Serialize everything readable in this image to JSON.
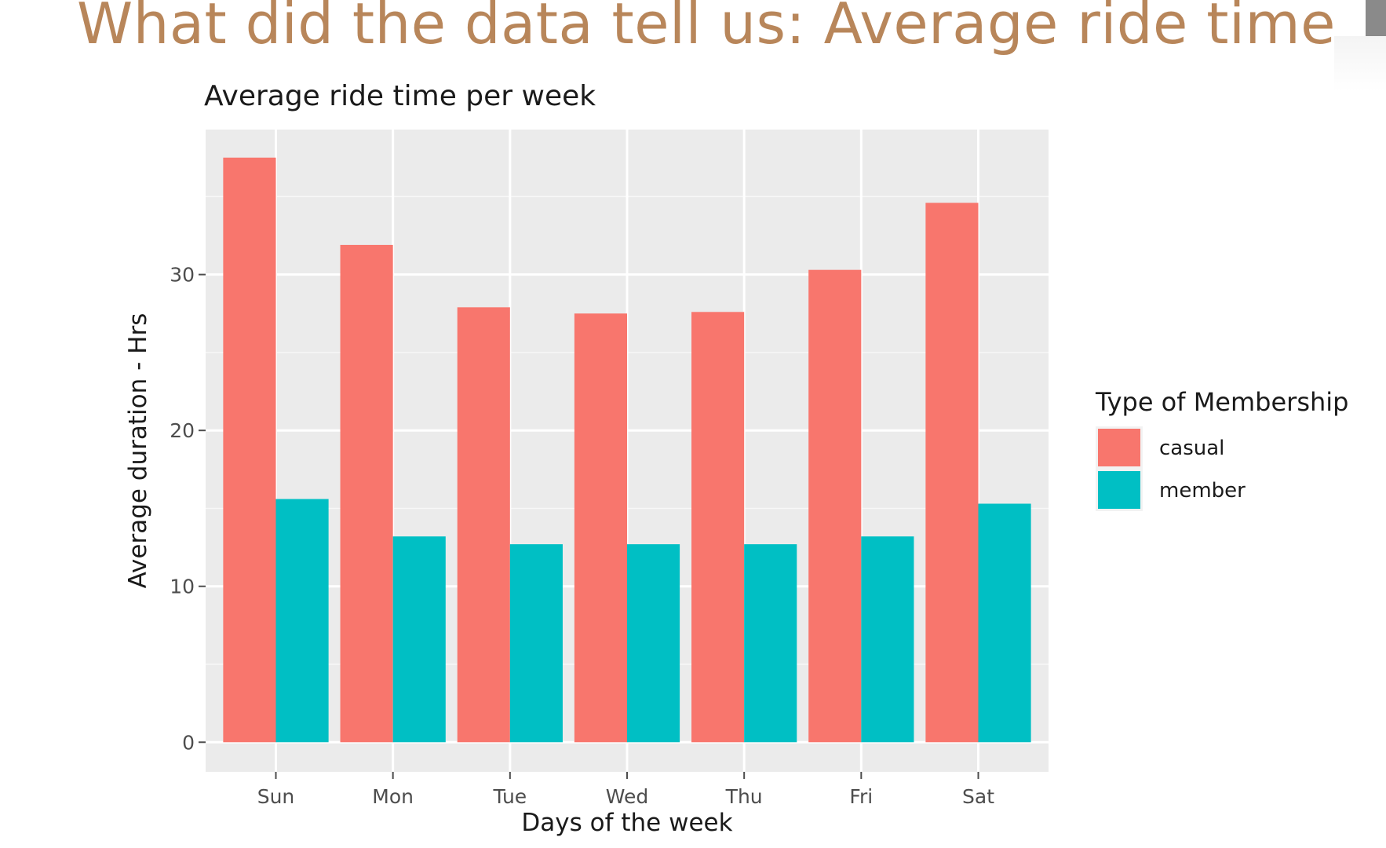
{
  "slide": {
    "title": "What did the data tell us: Average ride time"
  },
  "chart_data": {
    "type": "bar",
    "title": "Average ride time per week",
    "xlabel": "Days of the week",
    "ylabel": "Average duration - Hrs",
    "categories": [
      "Sun",
      "Mon",
      "Tue",
      "Wed",
      "Thu",
      "Fri",
      "Sat"
    ],
    "series": [
      {
        "name": "casual",
        "color": "#f8766d",
        "values": [
          37.5,
          31.9,
          27.9,
          27.5,
          27.6,
          30.3,
          34.6
        ]
      },
      {
        "name": "member",
        "color": "#00bfc4",
        "values": [
          15.6,
          13.2,
          12.7,
          12.7,
          12.7,
          13.2,
          15.3
        ]
      }
    ],
    "yticks": [
      0,
      10,
      20,
      30
    ],
    "ylim": [
      -1.9,
      39.3
    ],
    "legend_title": "Type of Membership",
    "legend_position": "right",
    "grid": true,
    "panel_background": "#ebebeb"
  }
}
